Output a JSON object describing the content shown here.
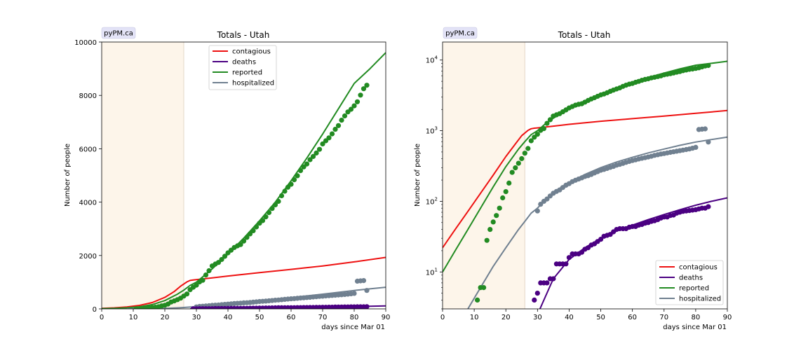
{
  "chart_data": [
    {
      "type": "line",
      "title": "Totals - Utah",
      "badge": "pyPM.ca",
      "xlabel": "days since Mar 01",
      "ylabel": "Number of people",
      "xlim": [
        0,
        90
      ],
      "ylim": [
        0,
        10000
      ],
      "yscale": "linear",
      "xticks": [
        0,
        10,
        20,
        30,
        40,
        50,
        60,
        70,
        80,
        90
      ],
      "yticks": [
        0,
        2000,
        4000,
        6000,
        8000,
        10000
      ],
      "grid": false,
      "legend_position": "top-center",
      "shaded_region": {
        "x": [
          0,
          26
        ],
        "color": "#fdf5ea"
      },
      "series": [
        {
          "name": "contagious",
          "color": "#ee1111",
          "kind": "model",
          "x": [
            0,
            4,
            8,
            12,
            16,
            20,
            23,
            25,
            27,
            28,
            29,
            30,
            35,
            40,
            50,
            60,
            70,
            80,
            90
          ],
          "y": [
            22,
            40,
            72,
            130,
            235,
            430,
            650,
            850,
            1010,
            1065,
            1085,
            1095,
            1160,
            1230,
            1360,
            1480,
            1610,
            1760,
            1930
          ]
        },
        {
          "name": "deaths",
          "color": "#4b0082",
          "kind": "model",
          "x": [
            28,
            30,
            35,
            40,
            45,
            50,
            55,
            60,
            65,
            70,
            75,
            80,
            85,
            90
          ],
          "y": [
            0.9,
            2.5,
            8,
            15,
            22,
            30,
            38,
            46,
            55,
            65,
            76,
            88,
            100,
            112
          ]
        },
        {
          "name": "reported",
          "color": "#228b22",
          "kind": "model",
          "x": [
            0,
            4,
            8,
            12,
            16,
            20,
            24,
            26,
            28,
            30,
            32,
            35,
            40,
            45,
            50,
            55,
            60,
            65,
            70,
            75,
            80,
            85,
            90
          ],
          "y": [
            10,
            20,
            40,
            80,
            160,
            310,
            550,
            700,
            880,
            1000,
            1200,
            1500,
            2050,
            2650,
            3300,
            4000,
            4800,
            5650,
            6550,
            7500,
            8450,
            9000,
            9600
          ]
        },
        {
          "name": "hospitalized",
          "color": "#708090",
          "kind": "model",
          "x": [
            8,
            12,
            16,
            20,
            24,
            26,
            28,
            30,
            32,
            35,
            40,
            45,
            50,
            55,
            60,
            65,
            70,
            75,
            80,
            85,
            90
          ],
          "y": [
            3,
            6,
            12,
            22,
            40,
            52,
            68,
            80,
            100,
            135,
            185,
            240,
            300,
            360,
            420,
            485,
            550,
            620,
            690,
            750,
            810
          ]
        }
      ],
      "observations": [
        {
          "name": "reported",
          "color": "#228b22",
          "x": [
            11,
            12,
            13,
            14,
            15,
            16,
            17,
            18,
            19,
            20,
            21,
            22,
            23,
            24,
            25,
            26,
            27,
            28,
            29,
            30,
            31,
            32,
            33,
            34,
            35,
            36,
            37,
            38,
            39,
            40,
            41,
            42,
            43,
            44,
            45,
            46,
            47,
            48,
            49,
            50,
            51,
            52,
            53,
            54,
            55,
            56,
            57,
            58,
            59,
            60,
            61,
            62,
            63,
            64,
            65,
            66,
            67,
            68,
            69,
            70,
            71,
            72,
            73,
            74,
            75,
            76,
            77,
            78,
            79,
            80,
            81,
            82,
            83,
            84
          ],
          "y": [
            4,
            6,
            6,
            28,
            40,
            51,
            63,
            80,
            112,
            137,
            181,
            257,
            298,
            346,
            402,
            480,
            560,
            720,
            810,
            890,
            1010,
            1070,
            1270,
            1430,
            1610,
            1680,
            1740,
            1850,
            1970,
            2100,
            2200,
            2300,
            2363,
            2410,
            2540,
            2680,
            2810,
            2930,
            3070,
            3210,
            3310,
            3450,
            3610,
            3760,
            3900,
            4030,
            4240,
            4410,
            4560,
            4670,
            4840,
            4990,
            5180,
            5320,
            5430,
            5590,
            5710,
            5840,
            5980,
            6180,
            6300,
            6410,
            6560,
            6730,
            6870,
            7070,
            7230,
            7380,
            7480,
            7610,
            7760,
            8010,
            8250,
            8380
          ]
        },
        {
          "name": "hospitalized",
          "color": "#708090",
          "x": [
            30,
            31,
            32,
            33,
            34,
            35,
            36,
            37,
            38,
            39,
            40,
            41,
            42,
            43,
            44,
            45,
            46,
            47,
            48,
            49,
            50,
            51,
            52,
            53,
            54,
            55,
            56,
            57,
            58,
            59,
            60,
            61,
            62,
            63,
            64,
            65,
            66,
            67,
            68,
            69,
            70,
            71,
            72,
            73,
            74,
            75,
            76,
            77,
            78,
            79,
            80,
            81,
            82,
            83,
            84
          ],
          "y": [
            73,
            91,
            100,
            108,
            119,
            130,
            138,
            145,
            157,
            169,
            178,
            190,
            199,
            207,
            215,
            225,
            231,
            240,
            252,
            263,
            275,
            283,
            292,
            303,
            312,
            325,
            333,
            344,
            356,
            367,
            378,
            387,
            397,
            407,
            415,
            425,
            434,
            447,
            457,
            467,
            475,
            485,
            494,
            503,
            512,
            522,
            531,
            541,
            551,
            565,
            580,
            1040,
            1050,
            1060,
            690
          ]
        },
        {
          "name": "deaths",
          "color": "#4b0082",
          "x": [
            29,
            30,
            31,
            32,
            33,
            34,
            35,
            36,
            37,
            38,
            39,
            40,
            41,
            42,
            43,
            44,
            45,
            46,
            47,
            48,
            49,
            50,
            51,
            52,
            53,
            54,
            55,
            56,
            57,
            58,
            59,
            60,
            61,
            62,
            63,
            64,
            65,
            66,
            67,
            68,
            69,
            70,
            71,
            72,
            73,
            74,
            75,
            76,
            77,
            78,
            79,
            80,
            81,
            82,
            83,
            84
          ],
          "y": [
            4,
            5,
            7,
            7,
            7,
            8,
            8,
            13,
            13,
            13,
            13,
            16,
            18,
            18,
            18,
            19,
            21,
            22,
            24,
            25,
            27,
            29,
            32,
            33,
            34,
            37,
            40,
            41,
            41,
            41,
            43,
            44,
            44,
            46,
            47,
            49,
            50,
            52,
            53,
            55,
            58,
            60,
            60,
            63,
            64,
            68,
            70,
            72,
            73,
            74,
            75,
            76,
            78,
            80,
            80,
            84
          ]
        }
      ]
    },
    {
      "type": "line",
      "title": "Totals - Utah",
      "badge": "pyPM.ca",
      "xlabel": "days since Mar 01",
      "ylabel": "Number of people",
      "xlim": [
        0,
        90
      ],
      "ylim": [
        3,
        18000
      ],
      "yscale": "log",
      "xticks": [
        0,
        10,
        20,
        30,
        40,
        50,
        60,
        70,
        80,
        90
      ],
      "yticks": [
        10,
        100,
        1000,
        10000
      ],
      "ytick_labels": [
        {
          "base": "10",
          "exp": "1"
        },
        {
          "base": "10",
          "exp": "2"
        },
        {
          "base": "10",
          "exp": "3"
        },
        {
          "base": "10",
          "exp": "4"
        }
      ],
      "grid": false,
      "legend_position": "bottom-right",
      "shaded_region": {
        "x": [
          0,
          26
        ],
        "color": "#fdf5ea"
      }
    }
  ]
}
